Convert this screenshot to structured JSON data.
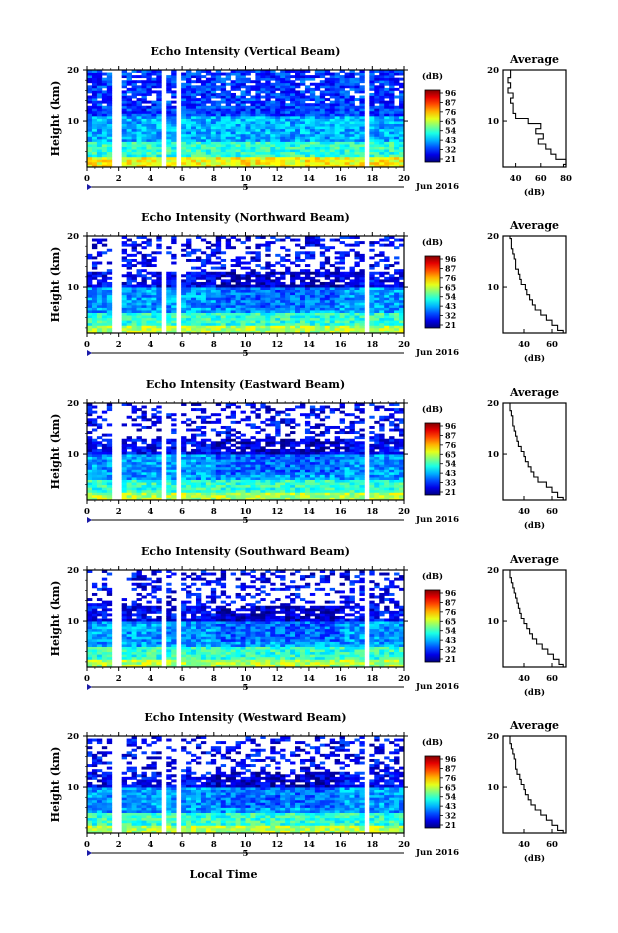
{
  "figure": {
    "bottom_label": "Local Time"
  },
  "chart_data": [
    {
      "type": "heatmap",
      "title": "Echo Intensity (Vertical Beam)",
      "ylabel": "Height (km)",
      "date_label": "Jun 2016",
      "day_marker": "5",
      "xticks": [
        "0",
        "2",
        "4",
        "6",
        "8",
        "10",
        "12",
        "14",
        "16",
        "18",
        "20"
      ],
      "xlim": [
        0,
        20
      ],
      "yticks": [
        "20",
        "10"
      ],
      "ylim": [
        1,
        20
      ],
      "colorbar": {
        "unit": "(dB)",
        "ticks": [
          "96",
          "87",
          "76",
          "65",
          "54",
          "43",
          "32",
          "21"
        ]
      },
      "data_gaps_hours": [
        [
          1.6,
          2.3
        ],
        [
          4.6,
          4.9
        ],
        [
          5.5,
          5.8
        ],
        [
          17.4,
          17.9
        ]
      ],
      "weak_upper_region_km": [
        13,
        20
      ],
      "average_profile": {
        "title": "Average",
        "xlabel": "(dB)",
        "xticks": [
          "40",
          "60",
          "80"
        ],
        "xlim": [
          30,
          80
        ],
        "heights_km": [
          1,
          2,
          3,
          4,
          5,
          6,
          7,
          8,
          9,
          10,
          11,
          12,
          13,
          14,
          15,
          16,
          17,
          18,
          19,
          20
        ],
        "values_db": [
          78,
          80,
          72,
          68,
          64,
          58,
          62,
          56,
          60,
          50,
          40,
          38,
          38,
          36,
          38,
          34,
          36,
          34,
          36,
          36
        ]
      }
    },
    {
      "type": "heatmap",
      "title": "Echo Intensity (Northward Beam)",
      "ylabel": "Height (km)",
      "date_label": "Jun 2016",
      "day_marker": "5",
      "xticks": [
        "0",
        "2",
        "4",
        "6",
        "8",
        "10",
        "12",
        "14",
        "16",
        "18",
        "20"
      ],
      "xlim": [
        0,
        20
      ],
      "yticks": [
        "20",
        "10"
      ],
      "ylim": [
        1,
        20
      ],
      "colorbar": {
        "unit": "(dB)",
        "ticks": [
          "96",
          "87",
          "76",
          "65",
          "54",
          "43",
          "32",
          "21"
        ]
      },
      "data_gaps_hours": [
        [
          1.6,
          2.3
        ],
        [
          4.6,
          4.9
        ],
        [
          5.5,
          5.8
        ],
        [
          17.4,
          17.9
        ]
      ],
      "weak_upper_region_km": [
        13,
        20
      ],
      "average_profile": {
        "title": "Average",
        "xlabel": "(dB)",
        "xticks": [
          "40",
          "60"
        ],
        "xlim": [
          25,
          70
        ],
        "heights_km": [
          1,
          2,
          3,
          4,
          5,
          6,
          7,
          8,
          9,
          10,
          11,
          12,
          13,
          14,
          15,
          16,
          17,
          18,
          19,
          20
        ],
        "values_db": [
          68,
          64,
          60,
          56,
          52,
          48,
          46,
          44,
          42,
          41,
          38,
          37,
          36,
          34,
          34,
          33,
          32,
          31,
          31,
          30
        ]
      }
    },
    {
      "type": "heatmap",
      "title": "Echo Intensity (Eastward Beam)",
      "ylabel": "Height (km)",
      "date_label": "Jun 2016",
      "day_marker": "5",
      "xticks": [
        "0",
        "2",
        "4",
        "6",
        "8",
        "10",
        "12",
        "14",
        "16",
        "18",
        "20"
      ],
      "xlim": [
        0,
        20
      ],
      "yticks": [
        "20",
        "10"
      ],
      "ylim": [
        1,
        20
      ],
      "colorbar": {
        "unit": "(dB)",
        "ticks": [
          "96",
          "87",
          "76",
          "65",
          "54",
          "43",
          "33",
          "21"
        ]
      },
      "data_gaps_hours": [
        [
          1.6,
          2.3
        ],
        [
          4.6,
          4.9
        ],
        [
          5.5,
          5.8
        ],
        [
          17.4,
          17.9
        ]
      ],
      "weak_upper_region_km": [
        13,
        20
      ],
      "average_profile": {
        "title": "Average",
        "xlabel": "(dB)",
        "xticks": [
          "40",
          "60"
        ],
        "xlim": [
          25,
          70
        ],
        "heights_km": [
          1,
          2,
          3,
          4,
          5,
          6,
          7,
          8,
          9,
          10,
          11,
          12,
          13,
          14,
          15,
          16,
          17,
          18,
          19,
          20
        ],
        "values_db": [
          68,
          64,
          60,
          56,
          50,
          47,
          45,
          43,
          41,
          40,
          38,
          36,
          35,
          34,
          33,
          32,
          32,
          31,
          30,
          30
        ]
      }
    },
    {
      "type": "heatmap",
      "title": "Echo Intensity (Southward Beam)",
      "ylabel": "Height (km)",
      "date_label": "Jun 2016",
      "day_marker": "5",
      "xticks": [
        "0",
        "2",
        "4",
        "6",
        "8",
        "10",
        "12",
        "14",
        "16",
        "18",
        "20"
      ],
      "xlim": [
        0,
        20
      ],
      "yticks": [
        "20",
        "10"
      ],
      "ylim": [
        1,
        20
      ],
      "colorbar": {
        "unit": "(dB)",
        "ticks": [
          "96",
          "87",
          "76",
          "65",
          "54",
          "43",
          "32",
          "21"
        ]
      },
      "data_gaps_hours": [
        [
          1.6,
          2.3
        ],
        [
          4.6,
          4.9
        ],
        [
          5.5,
          5.8
        ],
        [
          17.4,
          17.9
        ]
      ],
      "weak_upper_region_km": [
        13,
        20
      ],
      "average_profile": {
        "title": "Average",
        "xlabel": "(dB)",
        "xticks": [
          "40",
          "60"
        ],
        "xlim": [
          25,
          70
        ],
        "heights_km": [
          1,
          2,
          3,
          4,
          5,
          6,
          7,
          8,
          9,
          10,
          11,
          12,
          13,
          14,
          15,
          16,
          17,
          18,
          19,
          20
        ],
        "values_db": [
          68,
          65,
          61,
          57,
          53,
          49,
          46,
          44,
          42,
          40,
          38,
          37,
          36,
          35,
          34,
          33,
          32,
          31,
          30,
          30
        ]
      }
    },
    {
      "type": "heatmap",
      "title": "Echo Intensity (Westward Beam)",
      "ylabel": "Height (km)",
      "date_label": "Jun 2016",
      "day_marker": "5",
      "xticks": [
        "0",
        "2",
        "4",
        "6",
        "8",
        "10",
        "12",
        "14",
        "16",
        "18",
        "20"
      ],
      "xlim": [
        0,
        20
      ],
      "yticks": [
        "20",
        "10"
      ],
      "ylim": [
        1,
        20
      ],
      "colorbar": {
        "unit": "(dB)",
        "ticks": [
          "96",
          "87",
          "76",
          "65",
          "54",
          "43",
          "32",
          "21"
        ]
      },
      "data_gaps_hours": [
        [
          1.6,
          2.3
        ],
        [
          4.6,
          4.9
        ],
        [
          5.5,
          5.8
        ],
        [
          17.4,
          17.9
        ]
      ],
      "weak_upper_region_km": [
        13,
        20
      ],
      "average_profile": {
        "title": "Average",
        "xlabel": "(dB)",
        "xticks": [
          "40",
          "60"
        ],
        "xlim": [
          25,
          70
        ],
        "heights_km": [
          1,
          2,
          3,
          4,
          5,
          6,
          7,
          8,
          9,
          10,
          11,
          12,
          13,
          14,
          15,
          16,
          17,
          18,
          19,
          20
        ],
        "values_db": [
          68,
          64,
          60,
          56,
          52,
          48,
          45,
          43,
          41,
          40,
          38,
          37,
          35,
          34,
          34,
          33,
          32,
          31,
          30,
          30
        ]
      }
    }
  ]
}
